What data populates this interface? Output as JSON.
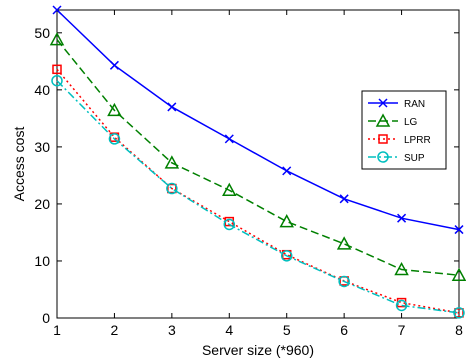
{
  "chart_data": {
    "type": "line",
    "title": "",
    "xlabel": "Server size (*960)",
    "ylabel": "Access cost",
    "xlim": [
      1,
      8
    ],
    "ylim": [
      0,
      54
    ],
    "x": [
      1,
      2,
      3,
      4,
      5,
      6,
      7,
      8
    ],
    "xticks": [
      "1",
      "2",
      "3",
      "4",
      "5",
      "6",
      "7",
      "8"
    ],
    "yticks": [
      "0",
      "10",
      "20",
      "30",
      "40",
      "50"
    ],
    "grid": false,
    "legend_position": "center-right",
    "series": [
      {
        "name": "RAN",
        "color": "#0000ff",
        "dash": "solid",
        "marker": "x",
        "values": [
          54.0,
          44.3,
          37.0,
          31.4,
          25.8,
          20.9,
          17.5,
          15.5
        ]
      },
      {
        "name": "LG",
        "color": "#008000",
        "dash": "dashed",
        "marker": "triangle",
        "values": [
          48.8,
          36.4,
          27.2,
          22.4,
          16.9,
          13.0,
          8.5,
          7.5
        ]
      },
      {
        "name": "LPRR",
        "color": "#ff0000",
        "dash": "dotted",
        "marker": "square",
        "values": [
          43.6,
          31.7,
          22.7,
          16.9,
          11.1,
          6.5,
          2.7,
          0.9
        ]
      },
      {
        "name": "SUP",
        "color": "#00bfbf",
        "dash": "dashdot",
        "marker": "circle",
        "values": [
          41.6,
          31.4,
          22.7,
          16.4,
          10.9,
          6.4,
          2.2,
          0.9
        ]
      }
    ]
  }
}
